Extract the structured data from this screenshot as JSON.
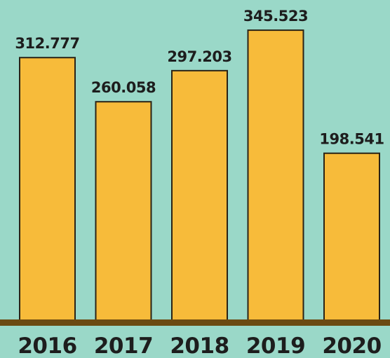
{
  "chart_data": {
    "type": "bar",
    "categories": [
      "2016",
      "2017",
      "2018",
      "2019",
      "2020"
    ],
    "values": [
      312777,
      260058,
      297203,
      345523,
      198541
    ],
    "value_labels": [
      "312.777",
      "260.058",
      "297.203",
      "345.523",
      "198.541"
    ],
    "title": "",
    "xlabel": "",
    "ylabel": "",
    "ylim": [
      0,
      360000
    ],
    "grid": false,
    "legend": "none",
    "colors": {
      "background": "#9ad8c8",
      "bar": "#f7bb3a",
      "bar_outline": "#2a2316",
      "baseline": "#6b4a12",
      "text": "#1d1d1d"
    }
  }
}
